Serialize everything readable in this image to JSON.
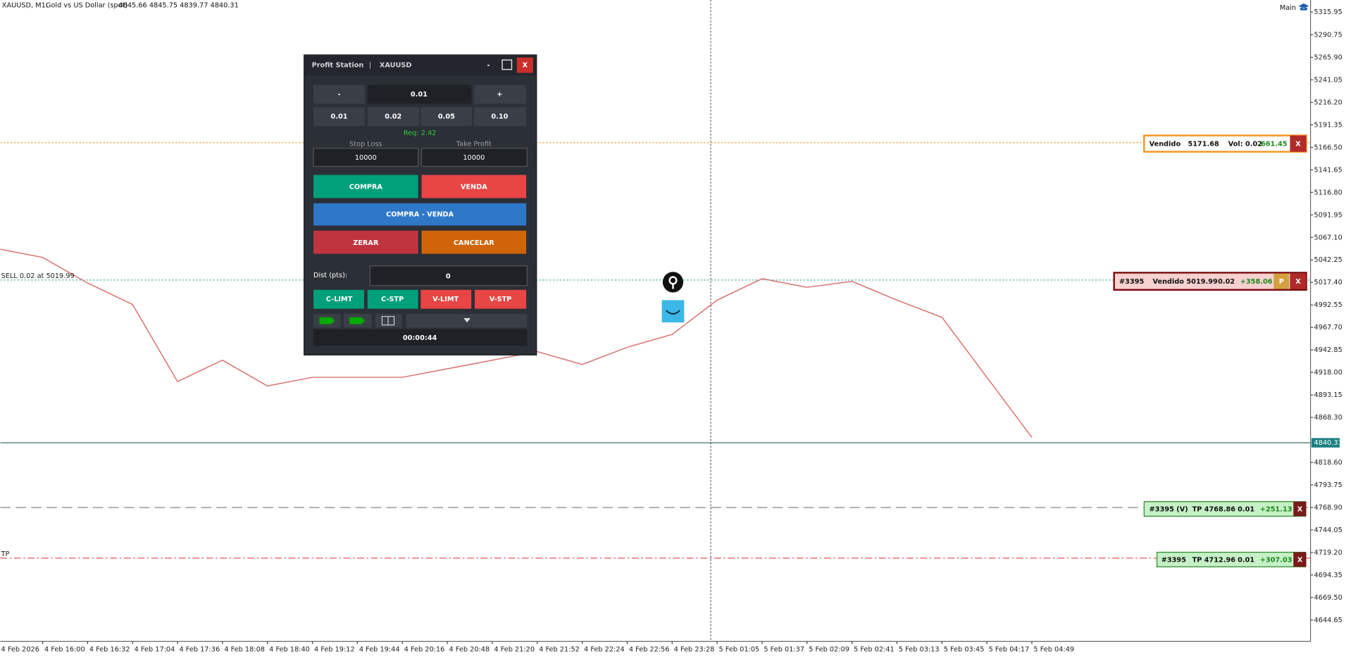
{
  "header": {
    "symbol": "XAUUSD, M1:",
    "description": "Gold vs US Dollar (spot)",
    "ohlc": "4845.66 4845.75 4839.77 4840.31",
    "workspace": "Main"
  },
  "chart_data": {
    "type": "line",
    "categories": [
      "4 Feb 2026",
      "4 Feb 16:00",
      "4 Feb 16:32",
      "4 Feb 17:04",
      "4 Feb 17:36",
      "4 Feb 18:08",
      "4 Feb 18:40",
      "4 Feb 19:12",
      "4 Feb 19:44",
      "4 Feb 20:16",
      "4 Feb 20:48",
      "4 Feb 21:20",
      "4 Feb 21:52",
      "4 Feb 22:24",
      "4 Feb 22:56",
      "4 Feb 23:28",
      "5 Feb 01:05",
      "5 Feb 01:37",
      "5 Feb 02:09",
      "5 Feb 02:41",
      "5 Feb 03:13",
      "5 Feb 03:45",
      "5 Feb 04:17",
      "5 Feb 04:49"
    ],
    "values": [
      5054.6,
      5045,
      5016.7,
      4993,
      4907.9,
      4931.5,
      4903,
      4912.6,
      4912.6,
      4912.6,
      4922,
      4931.5,
      4941,
      4926.8,
      4945.7,
      4960,
      4997.8,
      5021.5,
      5012,
      5018.6,
      4997.8,
      4978.9,
      4912.6,
      4846.3
    ],
    "color": "#d9706f",
    "ylim": [
      4621,
      5329.2
    ],
    "yticks": [
      5315.95,
      5290.75,
      {
        "value": 5265.9,
        "label": "5265.90"
      },
      5241.05,
      {
        "value": 5216.2,
        "label": "5216.20"
      },
      5191.35,
      {
        "value": 5166.5,
        "label": "5166.50"
      },
      5141.65,
      {
        "value": 5116.8,
        "label": "5116.80"
      },
      5091.95,
      {
        "value": 5067.1,
        "label": "5067.10"
      },
      5042.25,
      {
        "value": 5017.4,
        "label": "5017.40"
      },
      4992.55,
      {
        "value": 4967.7,
        "label": "4967.70"
      },
      4942.85,
      {
        "value": 4918,
        "label": "4918.00"
      },
      4893.15,
      {
        "value": 4868.3,
        "label": "4868.30"
      },
      {
        "value": 4818.6,
        "label": "4818.60"
      },
      4793.75,
      {
        "value": 4768.9,
        "label": "4768.90"
      },
      4744.05,
      {
        "value": 4719.2,
        "label": "4719.20"
      },
      4694.35,
      {
        "value": 4669.5,
        "label": "4669.50"
      },
      4644.65
    ],
    "current_price": 4840.31,
    "price_lines": [
      {
        "price": 5171.68,
        "color": "#f7931e",
        "style": "dotted"
      },
      {
        "price": 5019.99,
        "color": "#2a9d8f",
        "style": "dotted"
      },
      {
        "price": 4768.86,
        "color": "#777777",
        "style": "dashed"
      },
      {
        "price": 4712.96,
        "color": "#e04040",
        "style": "dashdot"
      }
    ],
    "line_labels": {
      "sell": "SELL 0.02 at 5019.99",
      "tp": "TP"
    }
  },
  "panel": {
    "title": "Profit Station",
    "separator": "|",
    "symbol": "XAUUSD",
    "minimize": "-",
    "close": "X",
    "lot_minus": "-",
    "lot": "0.01",
    "lot_plus": "+",
    "presets": [
      "0.01",
      "0.02",
      "0.05",
      "0.10"
    ],
    "required": "Req: 2.42",
    "stop_loss_label": "Stop Loss",
    "take_profit_label": "Take Profit",
    "stop_loss": "10000",
    "take_profit": "10000",
    "buy": "COMPRA",
    "sell": "VENDA",
    "buy_sell": "COMPRA - VENDA",
    "close_all": "ZERAR",
    "cancel": "CANCELAR",
    "distance_label": "Dist (pts):",
    "distance": "0",
    "pending": [
      "C-LIMT",
      "C-STP",
      "V-LIMT",
      "V-STP"
    ],
    "timer": "00:00:44"
  },
  "orders": [
    {
      "fields": [
        "Vendido",
        "5171.68",
        "Vol: 0.02",
        "661.45"
      ],
      "close": "X"
    },
    {
      "fields": [
        "#3395",
        "Vendido 5019.99",
        "0.02",
        "+358.06"
      ],
      "partial": "P",
      "close": "X"
    },
    {
      "fields": [
        "#3395 (V)",
        "TP 4768.86",
        "0.01",
        "+251.13"
      ],
      "close": "X"
    },
    {
      "fields": [
        "#3395",
        "TP 4712.96",
        "0.01",
        "+307.03"
      ],
      "close": "X"
    }
  ]
}
